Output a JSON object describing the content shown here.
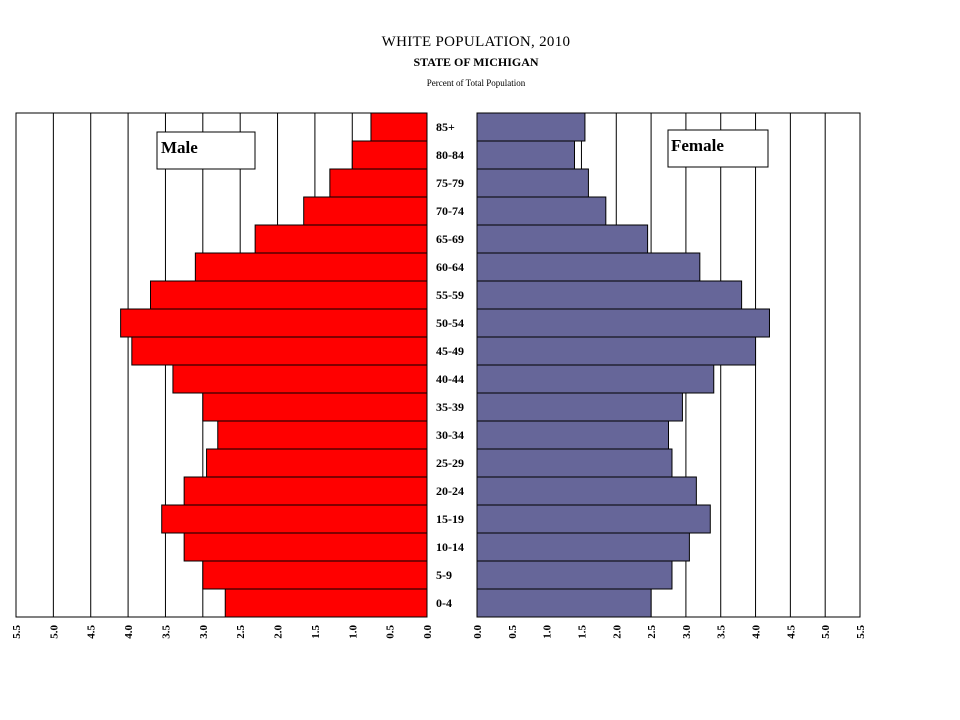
{
  "chart_data": {
    "type": "bar",
    "orientation": "horizontal-pyramid",
    "title": "WHITE POPULATION, 2010",
    "subtitle": "STATE OF MICHIGAN",
    "note": "Percent of Total Population",
    "categories": [
      "0-4",
      "5-9",
      "10-14",
      "15-19",
      "20-24",
      "25-29",
      "30-34",
      "35-39",
      "40-44",
      "45-49",
      "50-54",
      "55-59",
      "60-64",
      "65-69",
      "70-74",
      "75-79",
      "80-84",
      "85+"
    ],
    "series": [
      {
        "name": "Male",
        "color": "#ff0000",
        "values": [
          2.7,
          3.0,
          3.25,
          3.55,
          3.25,
          2.95,
          2.8,
          3.0,
          3.4,
          3.95,
          4.1,
          3.7,
          3.1,
          2.3,
          1.65,
          1.3,
          1.0,
          0.75
        ]
      },
      {
        "name": "Female",
        "color": "#666699",
        "values": [
          2.5,
          2.8,
          3.05,
          3.35,
          3.15,
          2.8,
          2.75,
          2.95,
          3.4,
          4.0,
          4.2,
          3.8,
          3.2,
          2.45,
          1.85,
          1.6,
          1.4,
          1.55
        ]
      }
    ],
    "xlim": [
      0,
      5.5
    ],
    "x_ticks": [
      "0.0",
      "0.5",
      "1.0",
      "1.5",
      "2.0",
      "2.5",
      "3.0",
      "3.5",
      "4.0",
      "4.5",
      "5.0",
      "5.5"
    ],
    "grid": true,
    "legend": {
      "male_label": "Male",
      "female_label": "Female",
      "placement": "top-inside"
    }
  }
}
